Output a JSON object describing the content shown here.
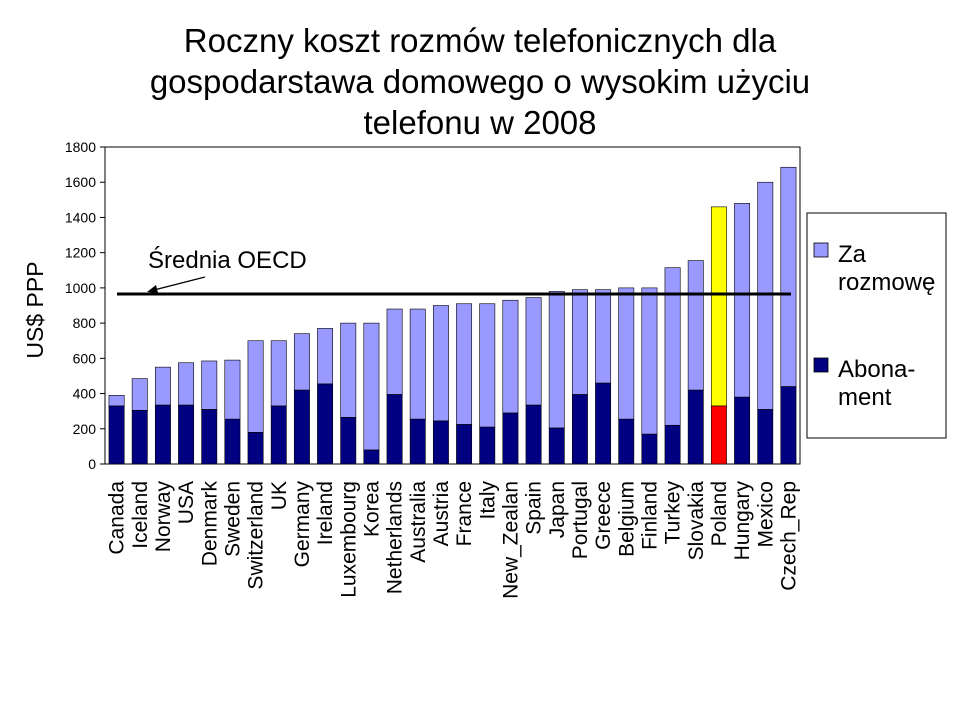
{
  "chart_data": {
    "type": "bar",
    "stacked": true,
    "title": "Roczny koszt rozmów telefonicznych dla\ngospodarstawa domowego o wysokim użyciu\ntelefonu w 2008",
    "ylabel": "US$ PPP",
    "xlabel": "",
    "ylim": [
      0,
      1800
    ],
    "yticks": [
      0,
      200,
      400,
      600,
      800,
      1000,
      1200,
      1400,
      1600,
      1800
    ],
    "grid": false,
    "legend_position": "right",
    "categories": [
      "Canada",
      "Iceland",
      "Norway",
      "USA",
      "Denmark",
      "Sweden",
      "Switzerland",
      "UK",
      "Germany",
      "Ireland",
      "Luxembourg",
      "Korea",
      "Netherlands",
      "Australia",
      "Austria",
      "France",
      "Italy",
      "New_Zealan",
      "Spain",
      "Japan",
      "Portugal",
      "Greece",
      "Belgium",
      "Finland",
      "Turkey",
      "Slovakia",
      "Poland",
      "Hungary",
      "Mexico",
      "Czech_Rep"
    ],
    "series": [
      {
        "name": "Abona-\nment",
        "color": "#000080",
        "values": [
          330,
          305,
          335,
          335,
          310,
          255,
          180,
          330,
          420,
          455,
          265,
          80,
          395,
          255,
          245,
          225,
          210,
          290,
          335,
          205,
          395,
          460,
          255,
          170,
          220,
          420,
          330,
          380,
          310,
          440
        ]
      },
      {
        "name": "Za\nrozmowę",
        "color": "#9999FF",
        "values": [
          60,
          180,
          215,
          240,
          275,
          335,
          520,
          370,
          320,
          315,
          535,
          720,
          485,
          625,
          655,
          685,
          700,
          640,
          610,
          775,
          595,
          530,
          745,
          830,
          895,
          735,
          1130,
          1100,
          1290,
          1245
        ]
      }
    ],
    "highlight": {
      "category": "Poland",
      "colors": [
        "#FF0000",
        "#FFFF00"
      ]
    },
    "annotation": {
      "text": "Średnia OECD",
      "y": 965
    }
  }
}
